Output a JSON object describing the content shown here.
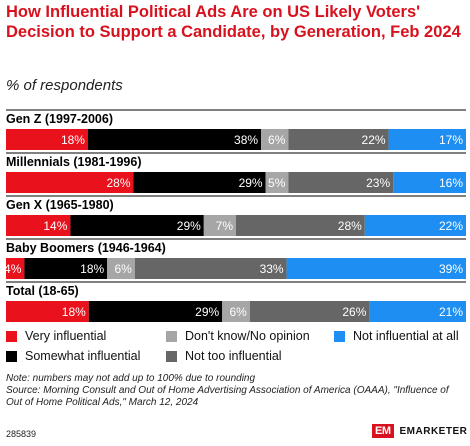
{
  "chart_data": {
    "type": "stacked-bar-horizontal",
    "title": "How Influential Political Ads Are on US Likely Voters' Decision to Support a Candidate, by Generation, Feb 2024",
    "subtitle": "% of respondents",
    "categories": [
      "Gen Z (1997-2006)",
      "Millennials (1981-1996)",
      "Gen X (1965-1980)",
      "Baby Boomers (1946-1964)",
      "Total (18-65)"
    ],
    "series": [
      {
        "name": "Very influential",
        "color": "#e8111c",
        "text_color": "#ffffff",
        "values": [
          18,
          28,
          14,
          4,
          18
        ]
      },
      {
        "name": "Somewhat influential",
        "color": "#000000",
        "text_color": "#ffffff",
        "values": [
          38,
          29,
          29,
          18,
          29
        ]
      },
      {
        "name": "Don't know/No opinion",
        "color": "#a6a6a6",
        "text_color": "#ffffff",
        "values": [
          6,
          5,
          7,
          6,
          6
        ]
      },
      {
        "name": "Not too influential",
        "color": "#666666",
        "text_color": "#ffffff",
        "values": [
          22,
          23,
          28,
          33,
          26
        ]
      },
      {
        "name": "Not influential at all",
        "color": "#1e8ef2",
        "text_color": "#ffffff",
        "values": [
          17,
          16,
          22,
          39,
          21
        ]
      }
    ],
    "value_suffix": "%",
    "legend_position": "bottom"
  },
  "note": "Note: numbers may not add up to 100% due to rounding",
  "source": "Source: Morning Consult and Out of Home Advertising Association of America (OAAA), \"Influence of Out of Home Political Ads,\" March 12, 2024",
  "chart_id": "285839",
  "brand": {
    "mark": "EM",
    "name": "EMARKETER",
    "color": "#d7121e"
  }
}
